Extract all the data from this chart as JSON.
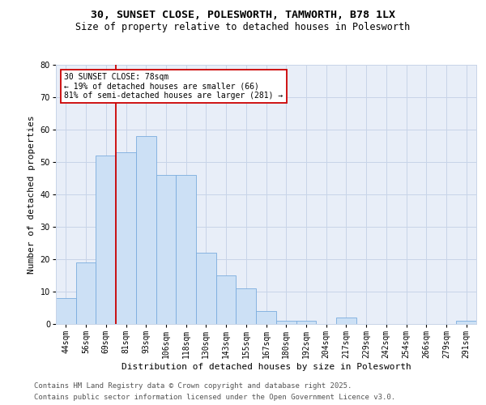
{
  "title_line1": "30, SUNSET CLOSE, POLESWORTH, TAMWORTH, B78 1LX",
  "title_line2": "Size of property relative to detached houses in Polesworth",
  "xlabel": "Distribution of detached houses by size in Polesworth",
  "ylabel": "Number of detached properties",
  "categories": [
    "44sqm",
    "56sqm",
    "69sqm",
    "81sqm",
    "93sqm",
    "106sqm",
    "118sqm",
    "130sqm",
    "143sqm",
    "155sqm",
    "167sqm",
    "180sqm",
    "192sqm",
    "204sqm",
    "217sqm",
    "229sqm",
    "242sqm",
    "254sqm",
    "266sqm",
    "279sqm",
    "291sqm"
  ],
  "values": [
    8,
    19,
    52,
    53,
    58,
    46,
    46,
    22,
    15,
    11,
    4,
    1,
    1,
    0,
    2,
    0,
    0,
    0,
    0,
    0,
    1
  ],
  "bar_color": "#cce0f5",
  "bar_edge_color": "#7aacde",
  "vline_x": 2.5,
  "vline_color": "#cc0000",
  "annotation_text": "30 SUNSET CLOSE: 78sqm\n← 19% of detached houses are smaller (66)\n81% of semi-detached houses are larger (281) →",
  "annotation_box_color": "#cc0000",
  "ylim": [
    0,
    80
  ],
  "yticks": [
    0,
    10,
    20,
    30,
    40,
    50,
    60,
    70,
    80
  ],
  "grid_color": "#c8d4e8",
  "background_color": "#e8eef8",
  "footer_line1": "Contains HM Land Registry data © Crown copyright and database right 2025.",
  "footer_line2": "Contains public sector information licensed under the Open Government Licence v3.0.",
  "title_fontsize": 9.5,
  "subtitle_fontsize": 8.5,
  "label_fontsize": 8,
  "tick_fontsize": 7,
  "annotation_fontsize": 7,
  "footer_fontsize": 6.5
}
